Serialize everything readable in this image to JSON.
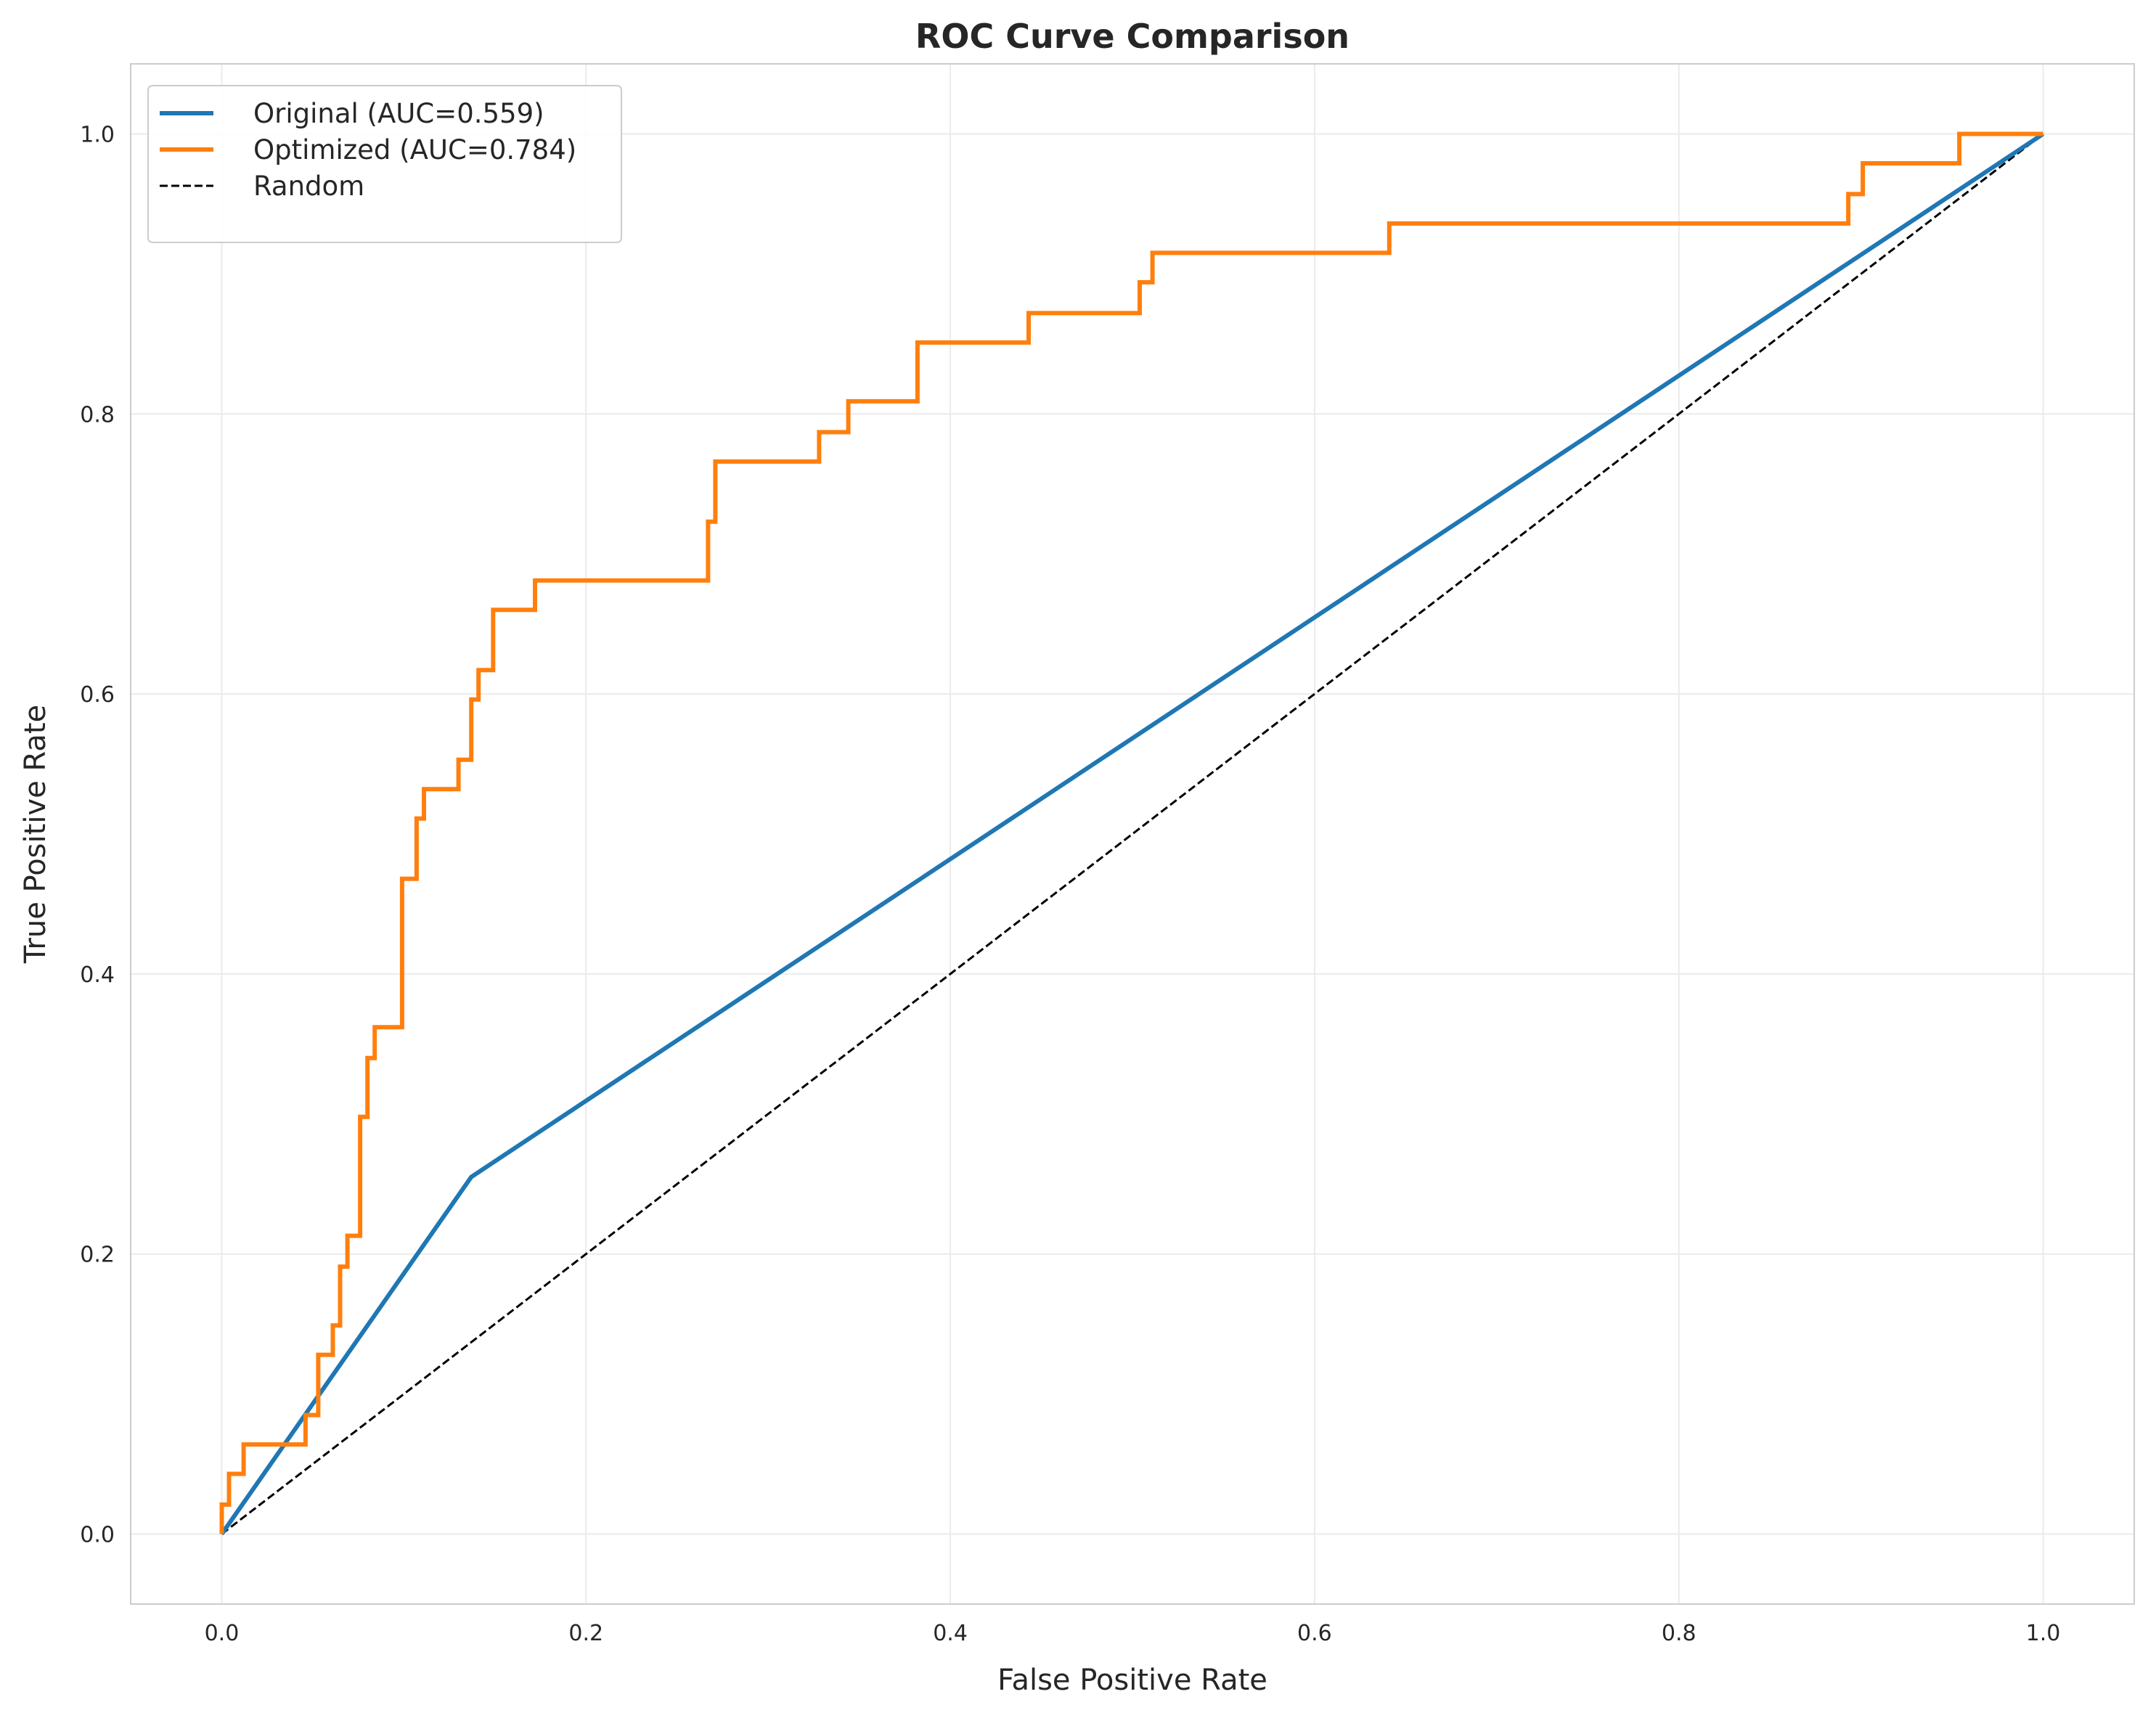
{
  "chart_data": {
    "type": "line",
    "title": "ROC Curve Comparison",
    "xlabel": "False Positive Rate",
    "ylabel": "True Positive Rate",
    "xlim": [
      -0.05,
      1.05
    ],
    "ylim": [
      -0.05,
      1.05
    ],
    "xticks": [
      0.0,
      0.2,
      0.4,
      0.6,
      0.8,
      1.0
    ],
    "yticks": [
      0.0,
      0.2,
      0.4,
      0.6,
      0.8,
      1.0
    ],
    "xtick_labels": [
      "0.0",
      "0.2",
      "0.4",
      "0.6",
      "0.8",
      "1.0"
    ],
    "ytick_labels": [
      "0.0",
      "0.2",
      "0.4",
      "0.6",
      "0.8",
      "1.0"
    ],
    "grid": true,
    "legend_position": "top-left",
    "series": [
      {
        "name": "Original (AUC=0.559)",
        "color": "#1f77b4",
        "style": "solid",
        "x": [
          0.0,
          0.137,
          1.0
        ],
        "y": [
          0.0,
          0.255,
          1.0
        ]
      },
      {
        "name": "Optimized (AUC=0.784)",
        "color": "#ff7f0e",
        "style": "solid",
        "step": true,
        "x": [
          0.0,
          0.0,
          0.004,
          0.004,
          0.012,
          0.012,
          0.046,
          0.046,
          0.053,
          0.053,
          0.061,
          0.061,
          0.065,
          0.065,
          0.069,
          0.069,
          0.076,
          0.076,
          0.08,
          0.08,
          0.084,
          0.084,
          0.099,
          0.099,
          0.107,
          0.107,
          0.111,
          0.111,
          0.13,
          0.13,
          0.137,
          0.137,
          0.141,
          0.141,
          0.149,
          0.149,
          0.172,
          0.172,
          0.267,
          0.267,
          0.271,
          0.271,
          0.328,
          0.328,
          0.344,
          0.344,
          0.382,
          0.382,
          0.443,
          0.443,
          0.504,
          0.504,
          0.511,
          0.511,
          0.641,
          0.641,
          0.893,
          0.893,
          0.901,
          0.901,
          0.954,
          0.954,
          1.0
        ],
        "y": [
          0.0,
          0.021,
          0.021,
          0.043,
          0.043,
          0.064,
          0.064,
          0.085,
          0.085,
          0.128,
          0.128,
          0.149,
          0.149,
          0.191,
          0.191,
          0.213,
          0.213,
          0.298,
          0.298,
          0.34,
          0.34,
          0.362,
          0.362,
          0.468,
          0.468,
          0.511,
          0.511,
          0.532,
          0.532,
          0.553,
          0.553,
          0.596,
          0.596,
          0.617,
          0.617,
          0.66,
          0.66,
          0.681,
          0.681,
          0.723,
          0.723,
          0.766,
          0.766,
          0.787,
          0.787,
          0.809,
          0.809,
          0.851,
          0.851,
          0.872,
          0.872,
          0.894,
          0.894,
          0.915,
          0.915,
          0.936,
          0.936,
          0.957,
          0.957,
          0.979,
          0.979,
          1.0,
          1.0
        ]
      },
      {
        "name": "Random",
        "color": "#000000",
        "style": "dashed",
        "x": [
          0.0,
          1.0
        ],
        "y": [
          0.0,
          1.0
        ]
      }
    ]
  }
}
